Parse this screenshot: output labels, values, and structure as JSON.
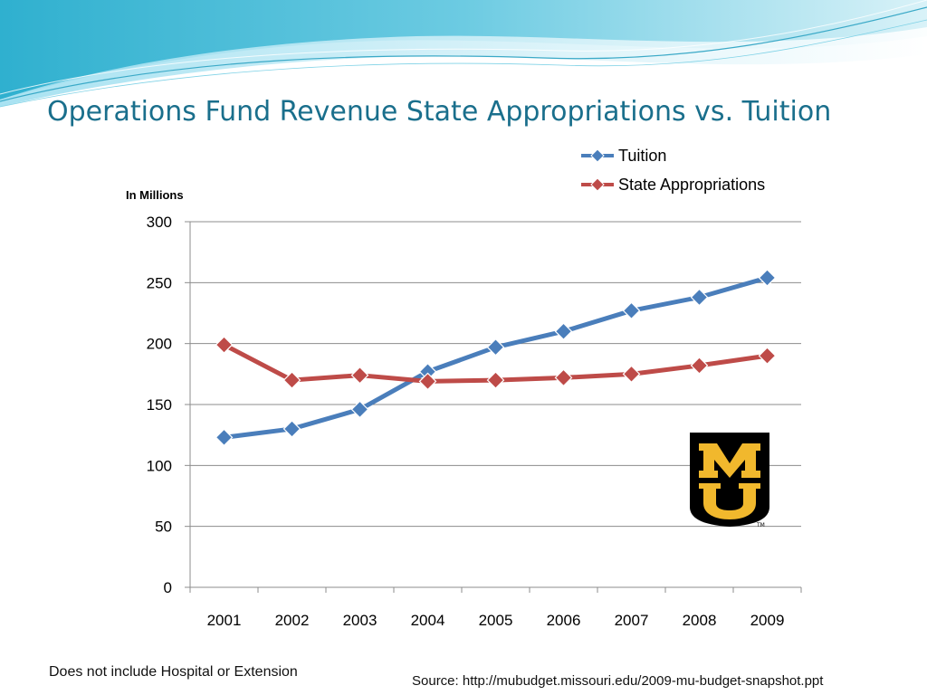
{
  "slide": {
    "title": "Operations Fund Revenue State Appropriations vs. Tuition",
    "footnote": "Does not include Hospital or Extension",
    "source": "Source:  http://mubudget.missouri.edu/2009-mu-budget-snapshot.ppt",
    "logo": {
      "letters": "MU",
      "tm": "TM",
      "colors": {
        "black": "#000000",
        "gold": "#f1b82d"
      }
    },
    "colors": {
      "title": "#1a6f8c",
      "banner_light": "#bfe9f3",
      "banner_mid": "#7fd2e6",
      "banner_dark": "#2fb0cf"
    }
  },
  "chart_data": {
    "type": "line",
    "unit_label": "In Millions",
    "categories": [
      "2001",
      "2002",
      "2003",
      "2004",
      "2005",
      "2006",
      "2007",
      "2008",
      "2009"
    ],
    "ylim": [
      0,
      300
    ],
    "yticks": [
      0,
      50,
      100,
      150,
      200,
      250,
      300
    ],
    "grid": true,
    "legend": "top-right",
    "series": [
      {
        "name": "Tuition",
        "color": "#4a7ebb",
        "marker": "diamond",
        "values": [
          123,
          130,
          146,
          177,
          197,
          210,
          227,
          238,
          254
        ]
      },
      {
        "name": "State Appropriations",
        "color": "#be4b48",
        "marker": "diamond",
        "values": [
          199,
          170,
          174,
          169,
          170,
          172,
          175,
          182,
          190
        ]
      }
    ]
  }
}
